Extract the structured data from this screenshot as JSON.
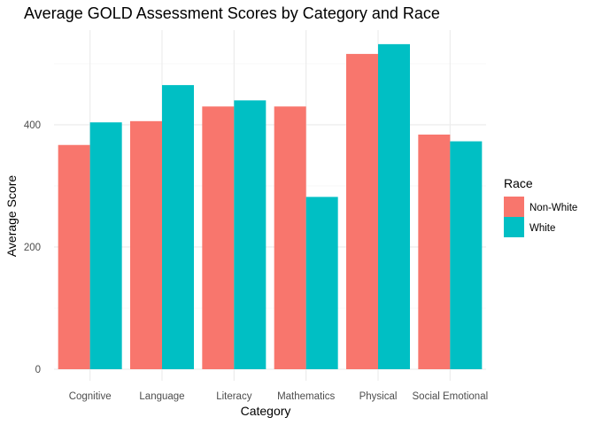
{
  "chart_data": {
    "type": "bar",
    "title": "Average GOLD Assessment Scores by Category and Race",
    "xlabel": "Category",
    "ylabel": "Average Score",
    "categories": [
      "Cognitive",
      "Language",
      "Literacy",
      "Mathematics",
      "Physical",
      "Social Emotional"
    ],
    "series": [
      {
        "name": "Non-White",
        "color": "#F8766D",
        "values": [
          367,
          406,
          430,
          430,
          516,
          384
        ]
      },
      {
        "name": "White",
        "color": "#00BFC4",
        "values": [
          404,
          465,
          440,
          282,
          532,
          373
        ]
      }
    ],
    "ylim": [
      0,
      555
    ],
    "yticks": [
      0,
      200,
      400
    ],
    "grid": true,
    "legend": {
      "title": "Race",
      "position": "right"
    }
  }
}
